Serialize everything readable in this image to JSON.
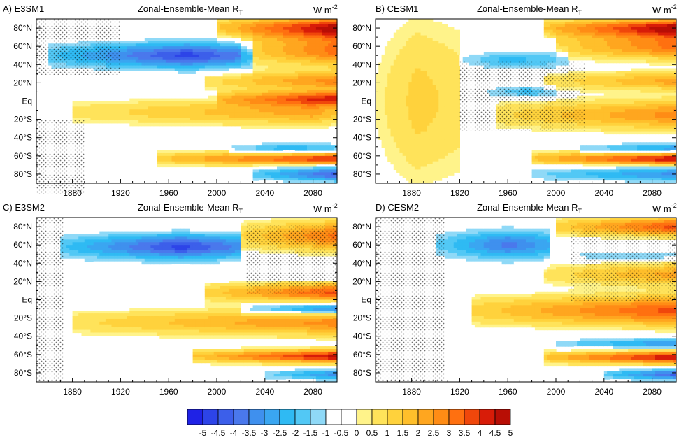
{
  "colors": {
    "contour_levels": [
      "#1f22e6",
      "#2d44e8",
      "#3c5fea",
      "#4a78ec",
      "#3f90ee",
      "#3aa6f1",
      "#2fbaf3",
      "#52c8f5",
      "#8fd9f7",
      "#ffffff",
      "#ffffff",
      "#fff38a",
      "#ffe35a",
      "#ffd23c",
      "#ffbf2b",
      "#ffa61f",
      "#ff8c15",
      "#ff7010",
      "#f0470b",
      "#d81c08",
      "#b80e05"
    ],
    "stipple": "#000000",
    "axis": "#000000"
  },
  "colorbar": {
    "labels": [
      "-5",
      "-4.5",
      "-4",
      "-3.5",
      "-3",
      "-2.5",
      "-2",
      "-1.5",
      "-1",
      "-0.5",
      "0",
      "0.5",
      "1",
      "1.5",
      "2",
      "2.5",
      "3",
      "3.5",
      "4",
      "4.5",
      "5"
    ]
  },
  "chart_data": [
    {
      "type": "heatmap",
      "panel_label": "A) E3SM1",
      "title": "Zonal-Ensemble-Mean R",
      "title_sub": "T",
      "units": "W m",
      "units_sup": "-2",
      "x_ticklabels": [
        "1880",
        "1920",
        "1960",
        "2000",
        "2040",
        "2080"
      ],
      "y_ticklabels": [
        "80°N",
        "60°N",
        "40°N",
        "20°N",
        "Eq",
        "20°S",
        "40°S",
        "60°S",
        "80°S"
      ],
      "xlim": [
        1850,
        2100
      ],
      "ylim": [
        -90,
        90
      ],
      "features": [
        {
          "lat": 50,
          "width": 14,
          "t0": 1860,
          "t1": 2030,
          "peak": -4.5,
          "tpk": 1975
        },
        {
          "lat": 80,
          "width": 12,
          "t0": 2000,
          "t1": 2100,
          "peak": 5,
          "tpk": 2100
        },
        {
          "lat": 55,
          "width": 16,
          "t0": 2020,
          "t1": 2100,
          "peak": 3.5,
          "tpk": 2100
        },
        {
          "lat": 22,
          "width": 10,
          "t0": 1990,
          "t1": 2100,
          "peak": 3,
          "tpk": 2100
        },
        {
          "lat": 3,
          "width": 8,
          "t0": 2000,
          "t1": 2100,
          "peak": 4,
          "tpk": 2100
        },
        {
          "lat": -12,
          "width": 14,
          "t0": 1880,
          "t1": 2100,
          "peak": 2.5,
          "tpk": 2080
        },
        {
          "lat": -52,
          "width": 6,
          "t0": 2010,
          "t1": 2100,
          "peak": -2.5,
          "tpk": 2060
        },
        {
          "lat": -63,
          "width": 7,
          "t0": 1950,
          "t1": 2100,
          "peak": 4.5,
          "tpk": 2100
        },
        {
          "lat": -80,
          "width": 8,
          "t0": 2030,
          "t1": 2100,
          "peak": -4,
          "tpk": 2100
        }
      ]
    },
    {
      "type": "heatmap",
      "panel_label": "B) CESM1",
      "title": "Zonal-Ensemble-Mean R",
      "title_sub": "T",
      "units": "W m",
      "units_sup": "-2",
      "x_ticklabels": [
        "1880",
        "1920",
        "1960",
        "2000",
        "2040",
        "2080"
      ],
      "y_ticklabels": [
        "80°N",
        "60°N",
        "40°N",
        "20°N",
        "Eq",
        "20°S",
        "40°S",
        "60°S",
        "80°S"
      ],
      "xlim": [
        1850,
        2100
      ],
      "ylim": [
        -90,
        90
      ],
      "features": [
        {
          "lat": 0,
          "width": 90,
          "t0": 1850,
          "t1": 1920,
          "peak": 1.5,
          "tpk": 1885
        },
        {
          "lat": 45,
          "width": 10,
          "t0": 1920,
          "t1": 2010,
          "peak": -2,
          "tpk": 1960
        },
        {
          "lat": 80,
          "width": 10,
          "t0": 1990,
          "t1": 2100,
          "peak": 5,
          "tpk": 2100
        },
        {
          "lat": 60,
          "width": 14,
          "t0": 2000,
          "t1": 2100,
          "peak": 3.5,
          "tpk": 2100
        },
        {
          "lat": 22,
          "width": 10,
          "t0": 1990,
          "t1": 2100,
          "peak": 2.5,
          "tpk": 2100
        },
        {
          "lat": 10,
          "width": 6,
          "t0": 1940,
          "t1": 2000,
          "peak": -2,
          "tpk": 1975
        },
        {
          "lat": -15,
          "width": 16,
          "t0": 1950,
          "t1": 2100,
          "peak": 3,
          "tpk": 2100
        },
        {
          "lat": -52,
          "width": 6,
          "t0": 2020,
          "t1": 2100,
          "peak": -3,
          "tpk": 2100
        },
        {
          "lat": -63,
          "width": 7,
          "t0": 1980,
          "t1": 2100,
          "peak": 5,
          "tpk": 2100
        },
        {
          "lat": -80,
          "width": 8,
          "t0": 1980,
          "t1": 2100,
          "peak": -3,
          "tpk": 2100
        }
      ]
    },
    {
      "type": "heatmap",
      "panel_label": "C) E3SM2",
      "title": "Zonal-Ensemble-Mean R",
      "title_sub": "T",
      "units": "W m",
      "units_sup": "-2",
      "x_ticklabels": [
        "1880",
        "1920",
        "1960",
        "2000",
        "2040",
        "2080"
      ],
      "y_ticklabels": [
        "80°N",
        "60°N",
        "40°N",
        "20°N",
        "Eq",
        "20°S",
        "40°S",
        "60°S",
        "80°S"
      ],
      "xlim": [
        1850,
        2100
      ],
      "ylim": [
        -90,
        90
      ],
      "features": [
        {
          "lat": 58,
          "width": 14,
          "t0": 1870,
          "t1": 2020,
          "peak": -4.5,
          "tpk": 1970
        },
        {
          "lat": 70,
          "width": 16,
          "t0": 2020,
          "t1": 2100,
          "peak": 3.5,
          "tpk": 2100
        },
        {
          "lat": 8,
          "width": 10,
          "t0": 1990,
          "t1": 2100,
          "peak": 4,
          "tpk": 2100
        },
        {
          "lat": -10,
          "width": 6,
          "t0": 2020,
          "t1": 2100,
          "peak": -4,
          "tpk": 2100
        },
        {
          "lat": -25,
          "width": 14,
          "t0": 1880,
          "t1": 2100,
          "peak": 3,
          "tpk": 2100
        },
        {
          "lat": -62,
          "width": 7,
          "t0": 1980,
          "t1": 2100,
          "peak": 5,
          "tpk": 2100
        },
        {
          "lat": -82,
          "width": 6,
          "t0": 2040,
          "t1": 2100,
          "peak": -3,
          "tpk": 2100
        }
      ]
    },
    {
      "type": "heatmap",
      "panel_label": "D) CESM2",
      "title": "Zonal-Ensemble-Mean R",
      "title_sub": "T",
      "units": "W m",
      "units_sup": "-2",
      "x_ticklabels": [
        "1880",
        "1920",
        "1960",
        "2000",
        "2040",
        "2080"
      ],
      "y_ticklabels": [
        "80°N",
        "60°N",
        "40°N",
        "20°N",
        "Eq",
        "20°S",
        "40°S",
        "60°S",
        "80°S"
      ],
      "xlim": [
        1850,
        2100
      ],
      "ylim": [
        -90,
        90
      ],
      "features": [
        {
          "lat": 60,
          "width": 16,
          "t0": 1900,
          "t1": 1995,
          "peak": -3.5,
          "tpk": 1960
        },
        {
          "lat": 80,
          "width": 10,
          "t0": 2000,
          "t1": 2100,
          "peak": 4,
          "tpk": 2100
        },
        {
          "lat": 48,
          "width": 4,
          "t0": 2000,
          "t1": 2100,
          "peak": -1.5,
          "tpk": 2050
        },
        {
          "lat": 28,
          "width": 12,
          "t0": 1990,
          "t1": 2100,
          "peak": 2.5,
          "tpk": 2100
        },
        {
          "lat": -12,
          "width": 16,
          "t0": 1930,
          "t1": 2100,
          "peak": 4,
          "tpk": 2100
        },
        {
          "lat": -48,
          "width": 6,
          "t0": 2000,
          "t1": 2100,
          "peak": -3,
          "tpk": 2100
        },
        {
          "lat": -63,
          "width": 7,
          "t0": 1990,
          "t1": 2100,
          "peak": 5,
          "tpk": 2100
        },
        {
          "lat": -82,
          "width": 6,
          "t0": 2040,
          "t1": 2100,
          "peak": -4,
          "tpk": 2100
        }
      ]
    }
  ]
}
